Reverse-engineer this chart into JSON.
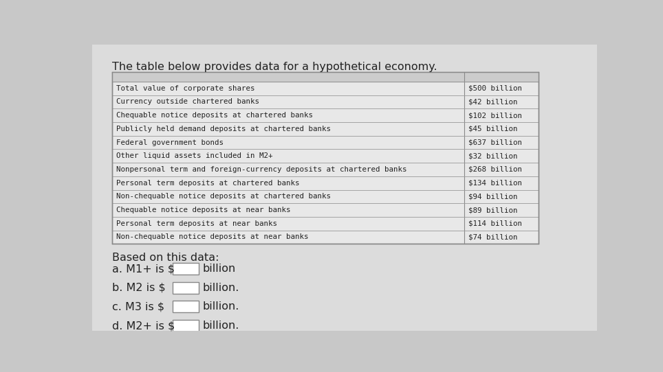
{
  "title": "The table below provides data for a hypothetical economy.",
  "title_fontsize": 11.5,
  "table_rows": [
    [
      "Total value of corporate shares",
      "$500 billion"
    ],
    [
      "Currency outside chartered banks",
      "$42 billion"
    ],
    [
      "Chequable notice deposits at chartered banks",
      "$102 billion"
    ],
    [
      "Publicly held demand deposits at chartered banks",
      "$45 billion"
    ],
    [
      "Federal government bonds",
      "$637 billion"
    ],
    [
      "Other liquid assets included in M2+",
      "$32 billion"
    ],
    [
      "Nonpersonal term and foreign-currency deposits at chartered banks",
      "$268 billion"
    ],
    [
      "Personal term deposits at chartered banks",
      "$134 billion"
    ],
    [
      "Non-chequable notice deposits at chartered banks",
      "$94 billion"
    ],
    [
      "Chequable notice deposits at near banks",
      "$89 billion"
    ],
    [
      "Personal term deposits at near banks",
      "$114 billion"
    ],
    [
      "Non-chequable notice deposits at near banks",
      "$74 billion"
    ]
  ],
  "questions": [
    [
      "a. M1+ is $",
      "billion"
    ],
    [
      "b. M2 is $",
      "billion."
    ],
    [
      "c. M3 is $",
      "billion."
    ],
    [
      "d. M2+ is $",
      "billion."
    ]
  ],
  "based_on_text": "Based on this data:",
  "bg_color": "#c8c8c8",
  "page_bg": "#e2e2e2",
  "table_row_bg": "#e8e8e8",
  "table_header_bg": "#cccccc",
  "text_color": "#222222",
  "mono_font": "monospace",
  "sans_font": "DejaVu Sans"
}
